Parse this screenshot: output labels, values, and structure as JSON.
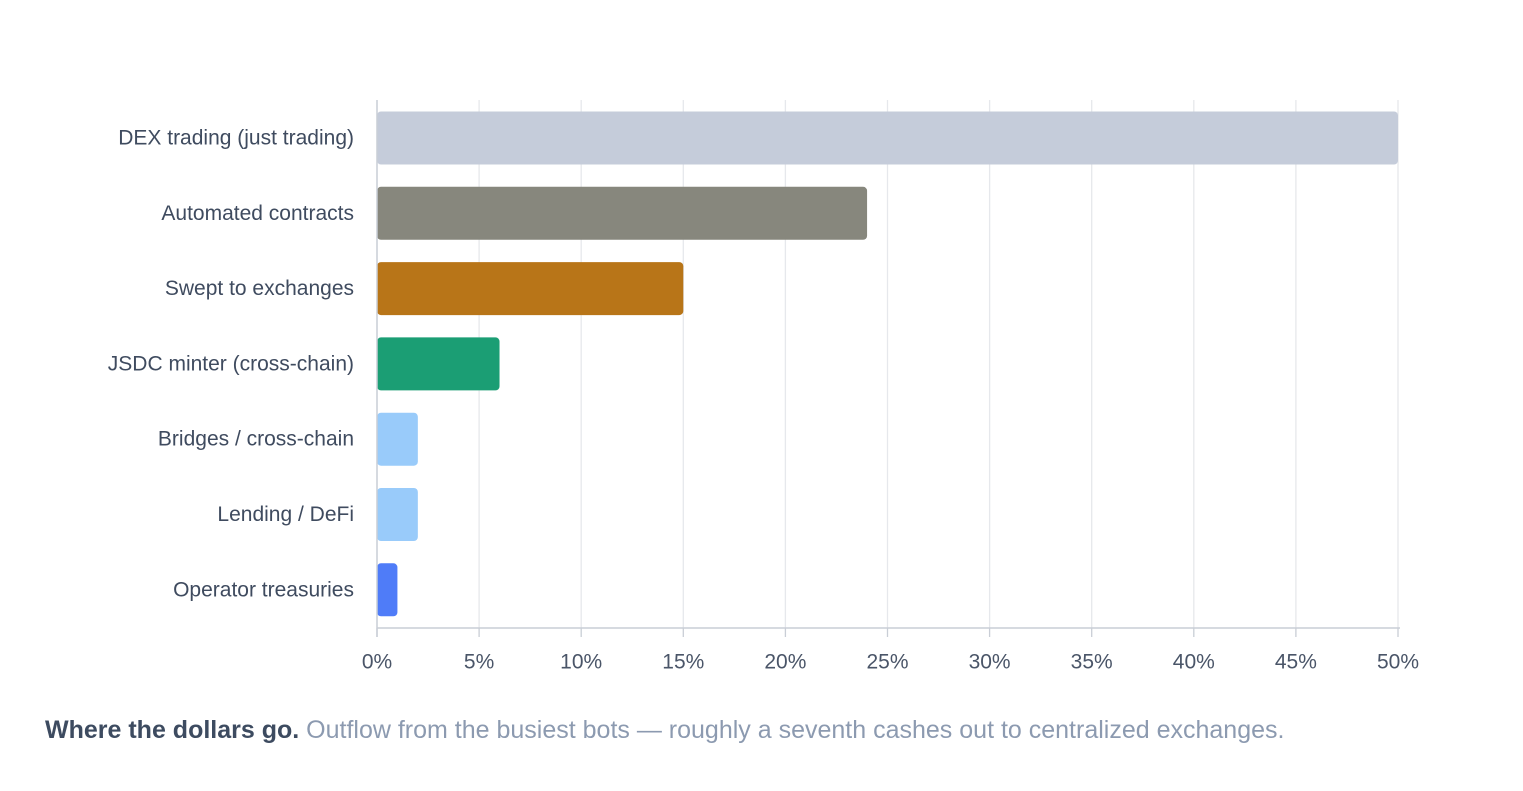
{
  "chart_data": {
    "type": "bar",
    "orientation": "horizontal",
    "title": "",
    "xlabel": "",
    "ylabel": "",
    "categories": [
      "DEX trading (just trading)",
      "Automated contracts",
      "Swept to exchanges",
      "JSDC minter (cross-chain)",
      "Bridges / cross-chain",
      "Lending / DeFi",
      "Operator treasuries"
    ],
    "values": [
      50,
      24,
      15,
      6,
      2,
      2,
      1
    ],
    "colors": [
      "#c5ccda",
      "#87877d",
      "#b87518",
      "#1b9e74",
      "#99cbfa",
      "#99cbfa",
      "#4f7cf8"
    ],
    "xlim": [
      0,
      50
    ],
    "xticks": [
      0,
      5,
      10,
      15,
      20,
      25,
      30,
      35,
      40,
      45,
      50
    ],
    "tick_labels": [
      "0%",
      "5%",
      "10%",
      "15%",
      "20%",
      "25%",
      "30%",
      "35%",
      "40%",
      "45%",
      "50%"
    ],
    "grid": "vertical",
    "legend": "none"
  },
  "caption": {
    "strong": "Where the dollars go.",
    "text": "Outflow from the busiest bots — roughly a seventh cashes out to centralized exchanges."
  }
}
